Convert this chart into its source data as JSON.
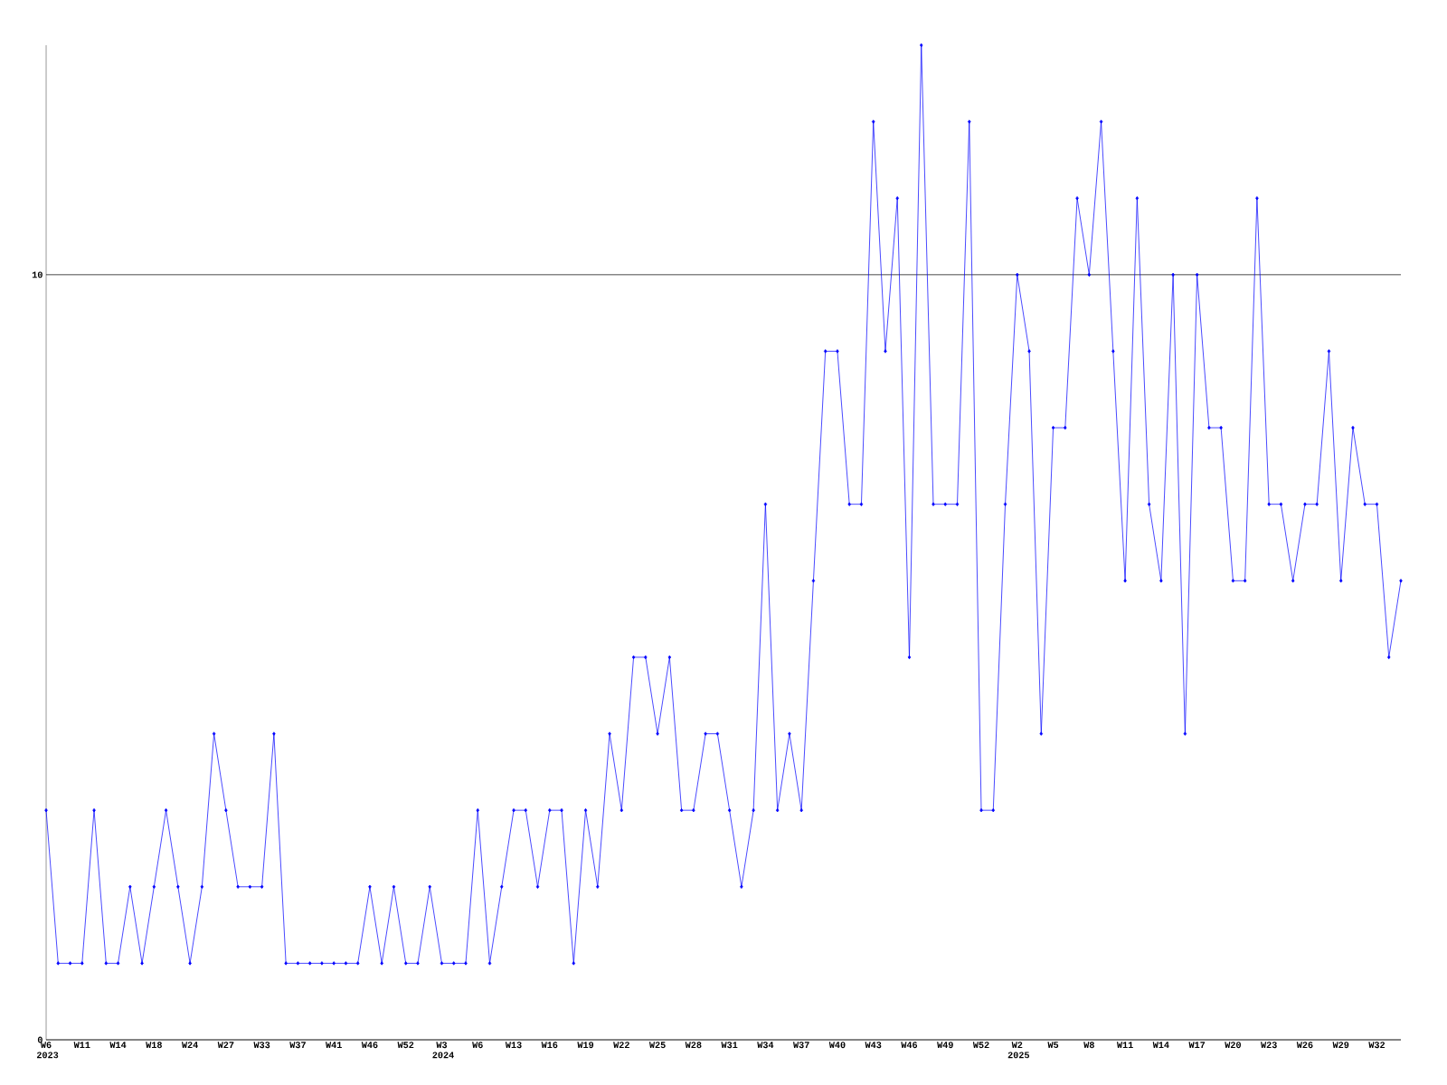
{
  "chart_data": {
    "type": "line",
    "categories": [
      "W6 2023",
      null,
      null,
      "W11",
      null,
      null,
      "W14",
      null,
      null,
      "W18",
      null,
      null,
      "W24",
      null,
      null,
      "W27",
      null,
      null,
      "W33",
      null,
      null,
      "W37",
      null,
      null,
      "W41",
      null,
      null,
      "W46",
      null,
      null,
      "W52",
      null,
      null,
      "W3 2024",
      null,
      null,
      "W6",
      null,
      null,
      "W13",
      null,
      null,
      "W16",
      null,
      null,
      "W19",
      null,
      null,
      "W22",
      null,
      null,
      "W25",
      null,
      null,
      "W28",
      null,
      null,
      "W31",
      null,
      null,
      "W34",
      null,
      null,
      "W37",
      null,
      null,
      "W40",
      null,
      null,
      "W43",
      null,
      null,
      "W46",
      null,
      null,
      "W49",
      null,
      null,
      "W52",
      null,
      null,
      "W2 2025",
      null,
      null,
      "W5",
      null,
      null,
      "W8",
      null,
      null,
      "W11",
      null,
      null,
      "W14",
      null,
      null,
      "W17",
      null,
      null,
      "W20",
      null,
      null,
      "W23",
      null,
      null,
      "W26",
      null,
      null,
      "W29",
      null,
      null,
      "W32",
      null,
      null
    ],
    "values": [
      3,
      1,
      1,
      1,
      3,
      1,
      1,
      2,
      1,
      2,
      3,
      2,
      1,
      2,
      4,
      3,
      2,
      2,
      2,
      4,
      1,
      1,
      1,
      1,
      1,
      1,
      1,
      2,
      1,
      2,
      1,
      1,
      2,
      1,
      1,
      1,
      3,
      1,
      2,
      3,
      3,
      2,
      3,
      3,
      1,
      3,
      2,
      4,
      3,
      5,
      5,
      4,
      5,
      3,
      3,
      4,
      4,
      3,
      2,
      3,
      7,
      3,
      4,
      3,
      6,
      9,
      9,
      7,
      7,
      12,
      9,
      11,
      5,
      13,
      7,
      7,
      7,
      12,
      3,
      3,
      7,
      10,
      9,
      4,
      8,
      8,
      11,
      10,
      12,
      9,
      6,
      11,
      7,
      6,
      10,
      4,
      10,
      8,
      8,
      6,
      6,
      11,
      7,
      7,
      6,
      7,
      7,
      9,
      6,
      8,
      7,
      7,
      5,
      6
    ],
    "color": "#0000ff",
    "marker": "diamond",
    "ylim": [
      0,
      13
    ],
    "yticks": [
      0,
      10
    ],
    "grid": "y"
  }
}
